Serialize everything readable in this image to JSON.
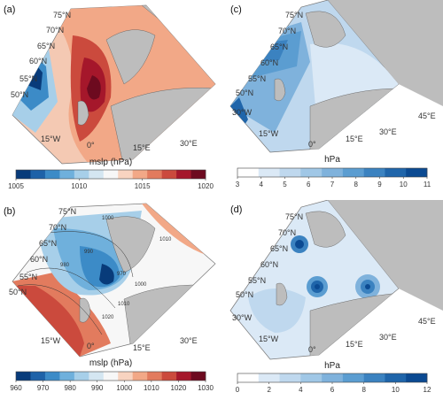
{
  "panels": [
    {
      "id": "a",
      "letter": "(a)",
      "lat_labels": [
        "75°N",
        "70°N",
        "65°N",
        "60°N",
        "55°N",
        "50°N"
      ],
      "lon_labels": [
        "15°W",
        "0°",
        "15°E",
        "30°E"
      ],
      "colorbar": {
        "label": "mslp (hPa)",
        "ticks": [
          "1005",
          "1010",
          "1015",
          "1020"
        ],
        "colors": [
          "#083b7a",
          "#1e62a8",
          "#3c8bc7",
          "#6fb0dc",
          "#a7cfe9",
          "#d4e6f1",
          "#f7f7f7",
          "#f8d3c0",
          "#f2a887",
          "#e27b5e",
          "#cb4a3d",
          "#a5172b",
          "#6d0a1f"
        ]
      }
    },
    {
      "id": "b",
      "letter": "(b)",
      "lat_labels": [
        "75°N",
        "70°N",
        "65°N",
        "60°N",
        "55°N",
        "50°N"
      ],
      "lon_labels": [
        "15°W",
        "0°",
        "15°E",
        "30°E"
      ],
      "contour_labels": [
        "1000",
        "1010",
        "990",
        "980",
        "970",
        "1000",
        "1010",
        "1020"
      ],
      "colorbar": {
        "label": "mslp (hPa)",
        "ticks": [
          "960",
          "970",
          "980",
          "990",
          "1000",
          "1010",
          "1020",
          "1030"
        ],
        "colors": [
          "#083b7a",
          "#1e62a8",
          "#3c8bc7",
          "#6fb0dc",
          "#a7cfe9",
          "#d4e6f1",
          "#f7f7f7",
          "#f8d3c0",
          "#f2a887",
          "#e27b5e",
          "#cb4a3d",
          "#a5172b",
          "#6d0a1f"
        ]
      }
    },
    {
      "id": "c",
      "letter": "(c)",
      "lat_labels": [
        "75°N",
        "70°N",
        "65°N",
        "60°N",
        "55°N",
        "50°N"
      ],
      "lon_labels": [
        "30°W",
        "15°W",
        "0°",
        "15°E",
        "30°E",
        "45°E"
      ],
      "colorbar": {
        "label": "hPa",
        "ticks": [
          "3",
          "4",
          "5",
          "6",
          "7",
          "8",
          "9",
          "10",
          "11"
        ],
        "colors": [
          "#ffffff",
          "#dbe9f6",
          "#bfd8ee",
          "#a0c7e6",
          "#7fb2dc",
          "#5b9dd1",
          "#3b82c0",
          "#1f65aa",
          "#0b4a92"
        ]
      }
    },
    {
      "id": "d",
      "letter": "(d)",
      "lat_labels": [
        "75°N",
        "70°N",
        "65°N",
        "60°N",
        "55°N",
        "50°N"
      ],
      "lon_labels": [
        "30°W",
        "15°W",
        "0°",
        "15°E",
        "30°E",
        "45°E"
      ],
      "colorbar": {
        "label": "hPa",
        "ticks": [
          "0",
          "2",
          "4",
          "6",
          "8",
          "10",
          "12"
        ],
        "colors": [
          "#ffffff",
          "#dbe9f6",
          "#bfd8ee",
          "#a0c7e6",
          "#7fb2dc",
          "#5b9dd1",
          "#3b82c0",
          "#1f65aa",
          "#0b4a92"
        ]
      }
    }
  ]
}
